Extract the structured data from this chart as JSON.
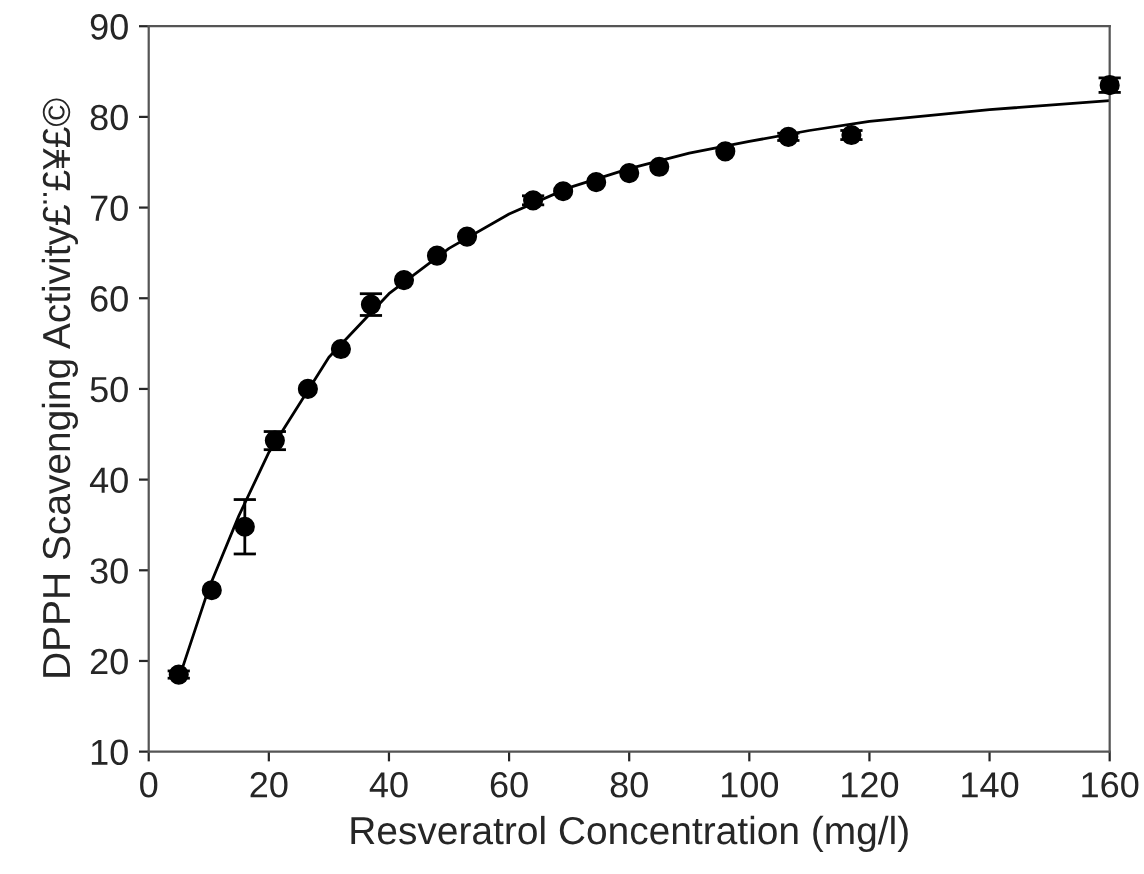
{
  "chart_data": {
    "type": "scatter",
    "xlabel": "Resveratrol Concentration (mg/l)",
    "ylabel": "DPPH Scavenging Activity£¨£¥£©",
    "xlim": [
      0,
      160
    ],
    "xticks": [
      0,
      20,
      40,
      60,
      80,
      100,
      120,
      140,
      160
    ],
    "ylim": [
      10,
      90
    ],
    "yticks": [
      10,
      20,
      30,
      40,
      50,
      60,
      70,
      80,
      90
    ],
    "grid": false,
    "legend": false,
    "series": [
      {
        "color": "#000000",
        "marker": "circle",
        "x": [
          5,
          10.5,
          16,
          21,
          26.5,
          32,
          37,
          42.5,
          48,
          53,
          64,
          69,
          74.5,
          80,
          85,
          96,
          106.5,
          117,
          160
        ],
        "values": [
          18.5,
          27.8,
          34.8,
          44.3,
          50,
          54.4,
          59.3,
          62,
          64.7,
          66.8,
          70.8,
          71.8,
          72.8,
          73.8,
          74.5,
          76.2,
          77.8,
          78,
          83.5
        ],
        "errors": [
          0.4,
          null,
          3,
          1,
          null,
          null,
          1.2,
          null,
          null,
          null,
          0.5,
          null,
          null,
          null,
          null,
          null,
          0.4,
          0.5,
          0.8
        ]
      },
      {
        "type": "line",
        "color": "#000000",
        "marker": "none",
        "line_style": "solid",
        "x": [
          5,
          10,
          15,
          20,
          30,
          40,
          50,
          60,
          70,
          80,
          90,
          100,
          110,
          120,
          140,
          160
        ],
        "values": [
          18,
          28,
          36,
          43,
          53.5,
          60.5,
          65.5,
          69.3,
          72.2,
          74.3,
          76,
          77.3,
          78.5,
          79.5,
          80.8,
          81.8
        ]
      }
    ]
  }
}
